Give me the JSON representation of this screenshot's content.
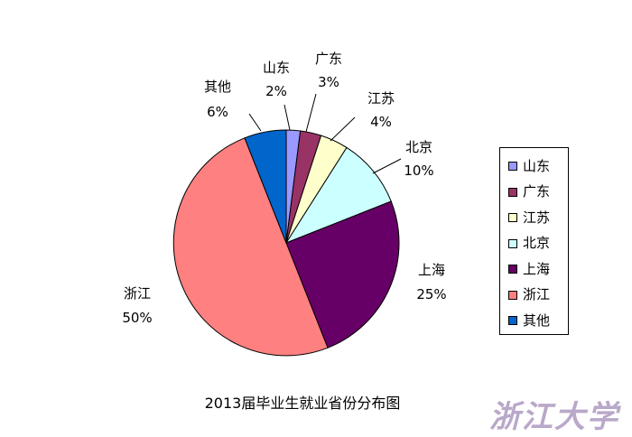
{
  "chart_data": {
    "type": "pie",
    "title": "2013届毕业生就业省份分布图",
    "slices": [
      {
        "label": "山东",
        "value": 2,
        "pct_label": "2%",
        "color": "#9999ff"
      },
      {
        "label": "广东",
        "value": 3,
        "pct_label": "3%",
        "color": "#993366"
      },
      {
        "label": "江苏",
        "value": 4,
        "pct_label": "4%",
        "color": "#ffffcc"
      },
      {
        "label": "北京",
        "value": 10,
        "pct_label": "10%",
        "color": "#ccffff"
      },
      {
        "label": "上海",
        "value": 25,
        "pct_label": "25%",
        "color": "#660066"
      },
      {
        "label": "浙江",
        "value": 50,
        "pct_label": "50%",
        "color": "#ff8080"
      },
      {
        "label": "其他",
        "value": 6,
        "pct_label": "6%",
        "color": "#0066cc"
      }
    ],
    "legend_position": "right"
  },
  "watermark": {
    "text": "浙江大学",
    "color": "#b9a8c9"
  }
}
